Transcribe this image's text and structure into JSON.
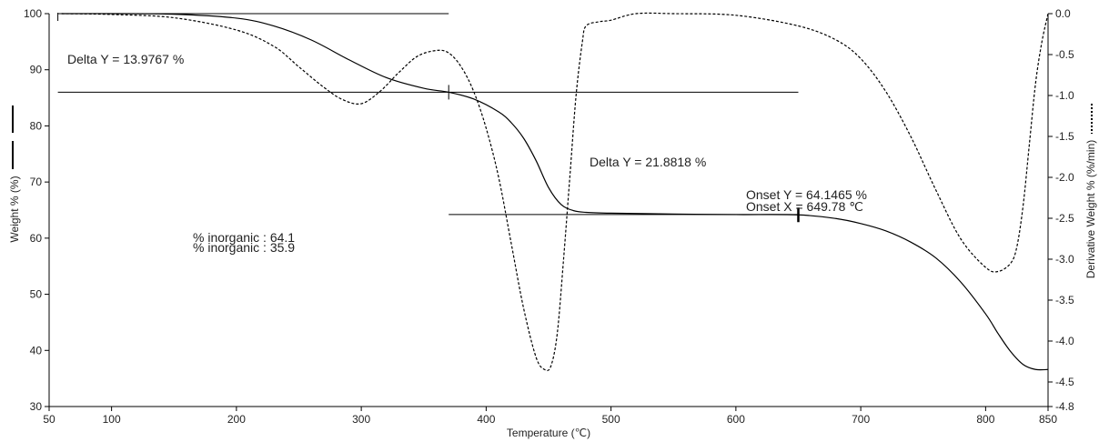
{
  "chart_data": {
    "type": "line",
    "title": "",
    "xlabel": "Temperature (℃)",
    "ylabel_left": "Weight % (%)",
    "ylabel_right": "Derivative Weight % (%/min)",
    "xlim": [
      50,
      850
    ],
    "ylim_left": [
      30,
      100
    ],
    "ylim_right": [
      -4.8,
      0.0
    ],
    "x_ticks": [
      "50",
      "100",
      "200",
      "300",
      "400",
      "500",
      "600",
      "700",
      "800",
      "850"
    ],
    "y_left_ticks": [
      "30",
      "40",
      "50",
      "60",
      "70",
      "80",
      "90",
      "100"
    ],
    "y_right_ticks": [
      "0.0",
      "-0.5",
      "-1.0",
      "-1.5",
      "-2.0",
      "-2.5",
      "-3.0",
      "-3.5",
      "-4.0",
      "-4.5",
      "-4.8"
    ],
    "series": [
      {
        "axis": "left",
        "style": "solid",
        "x": [
          60,
          100,
          150,
          200,
          230,
          260,
          290,
          320,
          350,
          370,
          390,
          410,
          420,
          430,
          440,
          450,
          460,
          470,
          480,
          500,
          550,
          600,
          650,
          680,
          700,
          720,
          740,
          760,
          780,
          800,
          810,
          820,
          830,
          840,
          850
        ],
        "y": [
          100,
          100,
          99.9,
          99.2,
          97.8,
          95.3,
          91.8,
          88.6,
          86.7,
          86.0,
          84.8,
          82.5,
          80.6,
          77.8,
          73.8,
          69.0,
          66.0,
          64.9,
          64.6,
          64.45,
          64.3,
          64.2,
          64.15,
          63.5,
          62.6,
          61.3,
          59.3,
          56.5,
          52.2,
          46.5,
          43.0,
          39.8,
          37.5,
          36.6,
          36.6
        ]
      },
      {
        "axis": "right",
        "style": "dashed",
        "x": [
          60,
          100,
          150,
          200,
          230,
          250,
          270,
          285,
          300,
          315,
          330,
          345,
          360,
          370,
          380,
          390,
          400,
          410,
          420,
          430,
          440,
          447,
          452,
          457,
          462,
          467,
          472,
          477,
          480,
          490,
          500,
          520,
          550,
          600,
          650,
          680,
          700,
          720,
          740,
          760,
          780,
          800,
          810,
          820,
          825,
          830,
          835,
          840,
          845,
          850
        ],
        "y": [
          0.0,
          -0.01,
          -0.05,
          -0.2,
          -0.4,
          -0.65,
          -0.9,
          -1.05,
          -1.1,
          -0.95,
          -0.72,
          -0.52,
          -0.45,
          -0.48,
          -0.65,
          -0.95,
          -1.4,
          -2.0,
          -2.8,
          -3.6,
          -4.2,
          -4.35,
          -4.3,
          -3.9,
          -3.0,
          -2.0,
          -1.0,
          -0.35,
          -0.15,
          -0.1,
          -0.08,
          -0.0,
          0.0,
          -0.02,
          -0.15,
          -0.32,
          -0.55,
          -0.95,
          -1.5,
          -2.15,
          -2.75,
          -3.1,
          -3.15,
          -3.05,
          -2.85,
          -2.35,
          -1.6,
          -0.85,
          -0.35,
          0.0
        ]
      }
    ],
    "annotations": {
      "delta1": "Delta Y = 13.9767 %",
      "delta2": "Delta Y = 21.8818 %",
      "onset_y": "Onset Y = 64.1465 %",
      "onset_x": "Onset X = 649.78 ℃",
      "inorganic1": "% inorganic : 64.1",
      "inorganic2": " % inorganic : 35.9"
    },
    "reference_lines": [
      {
        "x1": 57,
        "x2": 370,
        "y": 100
      },
      {
        "x1": 57,
        "x2": 650,
        "y": 86.0
      },
      {
        "x1": 370,
        "x2": 650,
        "y": 64.2
      }
    ],
    "markers": [
      {
        "x": 370,
        "y": 86.0
      },
      {
        "x": 650,
        "y": 64.15
      }
    ]
  }
}
